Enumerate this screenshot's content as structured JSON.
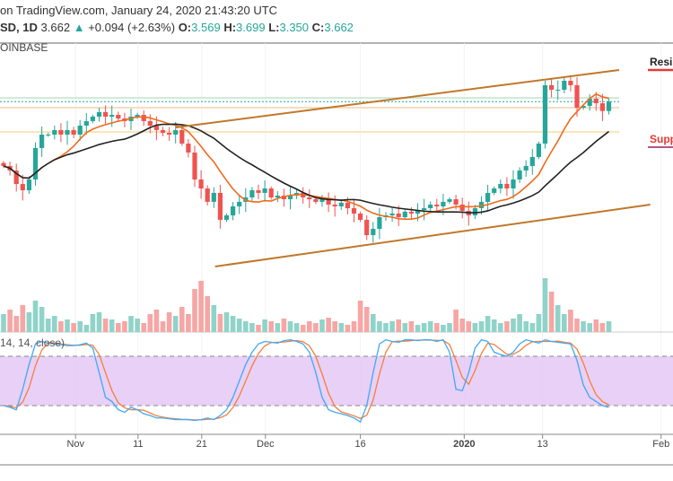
{
  "header": {
    "line1": "on TradingView.com, January 24, 2020 21:43:20 UTC",
    "symbol": "SD, 1D",
    "last": "3.662",
    "arrow": "▲",
    "change": "+0.094 (+2.63%)",
    "o_label": "O:",
    "o": "3.569",
    "h_label": "H:",
    "h": "3.699",
    "l_label": "L:",
    "l": "3.350",
    "c_label": "C:",
    "c": "3.662",
    "exchange": "OINBASE"
  },
  "stoch_label": "14, 14, close)",
  "chart_data": {
    "type": "candlestick",
    "x_ticks": [
      {
        "label": "Nov",
        "i": 11.3
      },
      {
        "label": "11",
        "i": 21.1
      },
      {
        "label": "21",
        "i": 31.1
      },
      {
        "label": "Dec",
        "i": 41.1
      },
      {
        "label": "16",
        "i": 56
      },
      {
        "label": "2020",
        "i": 72.3,
        "bold": true
      },
      {
        "label": "13",
        "i": 84.6
      },
      {
        "label": "Feb",
        "i": 103.2
      }
    ],
    "closes": [
      3.024,
      2.979,
      2.845,
      2.783,
      2.89,
      3.202,
      3.335,
      3.335,
      3.38,
      3.335,
      3.38,
      3.335,
      3.424,
      3.469,
      3.513,
      3.558,
      3.513,
      3.531,
      3.495,
      3.469,
      3.513,
      3.531,
      3.469,
      3.424,
      3.38,
      3.353,
      3.335,
      3.38,
      3.246,
      3.157,
      2.89,
      2.801,
      2.668,
      2.757,
      2.49,
      2.534,
      2.623,
      2.668,
      2.712,
      2.783,
      2.757,
      2.801,
      2.712,
      2.73,
      2.694,
      2.73,
      2.757,
      2.712,
      2.694,
      2.668,
      2.694,
      2.641,
      2.623,
      2.659,
      2.605,
      2.552,
      2.49,
      2.338,
      2.4,
      2.516,
      2.534,
      2.552,
      2.516,
      2.57,
      2.552,
      2.587,
      2.605,
      2.641,
      2.623,
      2.668,
      2.694,
      2.641,
      2.579,
      2.534,
      2.605,
      2.668,
      2.757,
      2.801,
      2.846,
      2.801,
      2.89,
      2.979,
      3.024,
      3.113,
      3.246,
      3.825,
      3.78,
      3.78,
      3.869,
      3.825,
      3.602,
      3.62,
      3.691,
      3.646,
      3.569,
      3.662
    ],
    "volume": [
      20,
      25,
      18,
      30,
      22,
      35,
      28,
      15,
      18,
      12,
      14,
      10,
      12,
      8,
      20,
      22,
      15,
      14,
      10,
      12,
      18,
      15,
      10,
      20,
      25,
      12,
      22,
      18,
      28,
      20,
      48,
      57,
      40,
      30,
      20,
      22,
      18,
      15,
      12,
      10,
      8,
      14,
      12,
      10,
      15,
      12,
      10,
      8,
      12,
      10,
      14,
      16,
      12,
      10,
      8,
      12,
      35,
      28,
      20,
      12,
      10,
      12,
      14,
      10,
      12,
      8,
      10,
      12,
      10,
      8,
      10,
      25,
      15,
      12,
      10,
      12,
      18,
      14,
      10,
      12,
      15,
      20,
      12,
      10,
      20,
      60,
      45,
      30,
      20,
      25,
      15,
      12,
      10,
      14,
      10,
      12
    ],
    "stoch_k": [
      20,
      18,
      15,
      40,
      70,
      95,
      98,
      96,
      95,
      94,
      93,
      93,
      94,
      96,
      90,
      60,
      30,
      25,
      15,
      12,
      18,
      15,
      10,
      8,
      5,
      5,
      4,
      3,
      3,
      3,
      2,
      3,
      5,
      3,
      8,
      15,
      30,
      50,
      70,
      85,
      95,
      98,
      97,
      96,
      99,
      100,
      98,
      95,
      85,
      60,
      30,
      15,
      12,
      10,
      8,
      5,
      0,
      20,
      60,
      95,
      100,
      98,
      97,
      100,
      100,
      99,
      100,
      100,
      98,
      100,
      85,
      40,
      38,
      60,
      90,
      100,
      98,
      85,
      82,
      80,
      85,
      95,
      100,
      98,
      96,
      100,
      98,
      97,
      96,
      95,
      75,
      45,
      30,
      25,
      20,
      18
    ],
    "stoch_bands": [
      80,
      20
    ],
    "sma_periods": [
      9,
      20
    ],
    "trendlines": [
      {
        "name": "resistance-trend",
        "i1": 27,
        "p1": 3.406,
        "i2": 96.6,
        "p2": 3.976
      },
      {
        "name": "support-trend",
        "i1": 33.2,
        "p1": 2.027,
        "i2": 101.5,
        "p2": 2.641
      }
    ],
    "levels": [
      3.699,
      3.662,
      3.602,
      3.362
    ],
    "annotations": [
      {
        "text": "Resis",
        "color": "#222",
        "underline": "#e53935"
      },
      {
        "text": "Supp",
        "color": "#e53935",
        "underline": "#b0588a"
      }
    ],
    "colors": {
      "up": "#26a69a",
      "down": "#ef5350",
      "sma_fast": "#f06a1c",
      "sma_slow": "#222222",
      "trend": "#c0782a",
      "stoch_k": "#3fa9f5",
      "stoch_d": "#f57f3c",
      "stoch_fill": "#e5c8f5"
    }
  }
}
